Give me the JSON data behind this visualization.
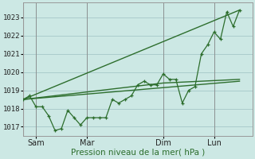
{
  "background_color": "#cce8e4",
  "grid_color": "#aacccc",
  "line_color": "#2d6e2d",
  "marker_color": "#2d6e2d",
  "xlabel": "Pression niveau de la mer( hPa )",
  "ylim": [
    1016.5,
    1023.8
  ],
  "xlim": [
    0,
    18
  ],
  "ytick_values": [
    1017,
    1018,
    1019,
    1020,
    1021,
    1022,
    1023
  ],
  "xtick_positions": [
    1,
    5,
    11,
    15
  ],
  "xtick_labels": [
    "Sam",
    "Mar",
    "Dim",
    "Lun"
  ],
  "vline_positions": [
    1,
    5,
    11,
    15
  ],
  "series1_x": [
    0,
    0.5,
    1.0,
    1.5,
    2.0,
    2.5,
    3.0,
    3.5,
    4.0,
    4.5,
    5.0,
    5.5,
    6.0,
    6.5,
    7.0,
    7.5,
    8.0,
    8.5,
    9.0,
    9.5,
    10.0,
    10.5,
    11.0,
    11.5,
    12.0,
    12.5,
    13.0,
    13.5,
    14.0,
    14.5,
    15.0,
    15.5,
    16.0,
    16.5,
    17.0
  ],
  "series1_y": [
    1018.5,
    1018.7,
    1018.1,
    1018.1,
    1017.6,
    1016.8,
    1016.9,
    1017.9,
    1017.5,
    1017.1,
    1017.5,
    1017.5,
    1017.5,
    1017.5,
    1018.5,
    1018.3,
    1018.5,
    1018.7,
    1019.3,
    1019.5,
    1019.3,
    1019.3,
    1019.9,
    1019.6,
    1019.6,
    1018.3,
    1019.0,
    1019.2,
    1021.0,
    1021.5,
    1022.2,
    1021.8,
    1023.3,
    1022.5,
    1023.4
  ],
  "trend1_x": [
    0,
    17
  ],
  "trend1_y": [
    1018.5,
    1023.4
  ],
  "trend2_x": [
    0,
    17
  ],
  "trend2_y": [
    1018.5,
    1019.5
  ],
  "trend3_x": [
    0,
    11,
    17
  ],
  "trend3_y": [
    1018.5,
    1019.4,
    1019.6
  ]
}
